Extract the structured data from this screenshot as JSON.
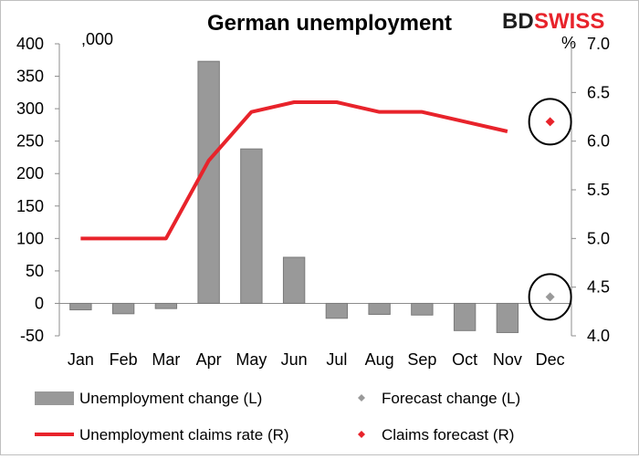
{
  "chart_data": {
    "type": "bar+line",
    "title": "German unemployment",
    "brand": {
      "text_dark": "BD",
      "text_red": "SWISS"
    },
    "left_unit": ",000",
    "right_unit": "%",
    "categories": [
      "Jan",
      "Feb",
      "Mar",
      "Apr",
      "May",
      "Jun",
      "Jul",
      "Aug",
      "Sep",
      "Oct",
      "Nov",
      "Dec"
    ],
    "left_axis": {
      "min": -50,
      "max": 400,
      "ticks": [
        -50,
        0,
        50,
        100,
        150,
        200,
        250,
        300,
        350,
        400
      ]
    },
    "right_axis": {
      "min": 4.0,
      "max": 7.0,
      "ticks": [
        "4.0",
        "4.5",
        "5.0",
        "5.5",
        "6.0",
        "6.5",
        "7.0"
      ]
    },
    "series": [
      {
        "name": "Unemployment change (L)",
        "kind": "bar",
        "axis": "left",
        "color": "#999999",
        "values": [
          -10,
          -16,
          -8,
          373,
          238,
          71,
          -23,
          -17,
          -18,
          -42,
          -45,
          null
        ]
      },
      {
        "name": "Unemployment claims rate (R)",
        "kind": "line",
        "axis": "right",
        "color": "#e8232b",
        "values": [
          5.0,
          5.0,
          5.0,
          5.8,
          6.3,
          6.4,
          6.4,
          6.3,
          6.3,
          6.2,
          6.1,
          null
        ]
      },
      {
        "name": "Forecast change (L)",
        "kind": "marker",
        "axis": "left",
        "color": "#999999",
        "values": [
          null,
          null,
          null,
          null,
          null,
          null,
          null,
          null,
          null,
          null,
          null,
          10
        ]
      },
      {
        "name": "Claims forecast (R)",
        "kind": "marker",
        "axis": "right",
        "color": "#e8232b",
        "values": [
          null,
          null,
          null,
          null,
          null,
          null,
          null,
          null,
          null,
          null,
          null,
          6.2
        ]
      }
    ],
    "annotations": [
      "circle around Dec claims forecast",
      "circle around Dec forecast change"
    ],
    "grid": false,
    "legend_position": "bottom"
  }
}
